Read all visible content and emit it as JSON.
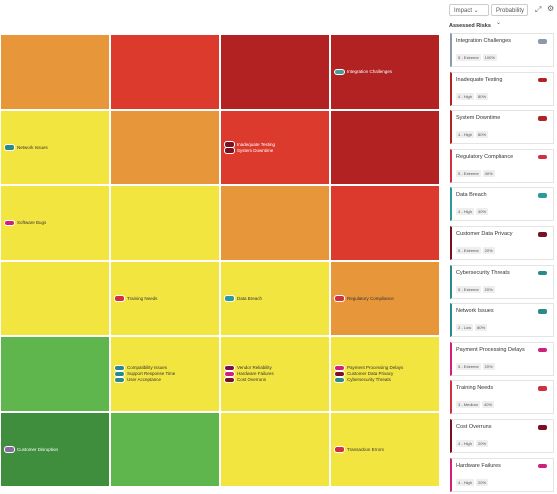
{
  "toolbar": {
    "filters": [
      "Impact",
      "Probability"
    ]
  },
  "heatmap": {
    "rows": [
      {
        "cells": [
          {
            "color": "#e8963a",
            "risks": []
          },
          {
            "color": "#dd3a2e",
            "risks": []
          },
          {
            "color": "#b22222",
            "risks": []
          },
          {
            "color": "#b22222",
            "risks": [
              {
                "name": "Integration Challenges",
                "color": "#4a9a9a"
              }
            ]
          }
        ]
      },
      {
        "cells": [
          {
            "color": "#f3e540",
            "risks": [
              {
                "name": "Network Issues",
                "color": "#2a8a8a"
              }
            ]
          },
          {
            "color": "#e8963a",
            "risks": []
          },
          {
            "color": "#dd3a2e",
            "risks": [
              {
                "name": "Inadequate Testing",
                "color": "#7a1020"
              },
              {
                "name": "System Downtime",
                "color": "#7a1020"
              }
            ]
          },
          {
            "color": "#b22222",
            "risks": []
          }
        ]
      },
      {
        "cells": [
          {
            "color": "#f3e540",
            "risks": [
              {
                "name": "Software Bugs",
                "color": "#d0207a"
              }
            ]
          },
          {
            "color": "#f3e540",
            "risks": []
          },
          {
            "color": "#e8963a",
            "risks": []
          },
          {
            "color": "#dd3a2e",
            "risks": []
          }
        ]
      },
      {
        "cells": [
          {
            "color": "#f3e540",
            "risks": []
          },
          {
            "color": "#f3e540",
            "risks": [
              {
                "name": "Training Needs",
                "color": "#d03040"
              }
            ]
          },
          {
            "color": "#f3e540",
            "risks": [
              {
                "name": "Data Breach",
                "color": "#2a9a9a"
              }
            ]
          },
          {
            "color": "#e8963a",
            "risks": [
              {
                "name": "Regulatory Compliance",
                "color": "#d03040"
              }
            ]
          }
        ]
      },
      {
        "cells": [
          {
            "color": "#5fb64c",
            "risks": []
          },
          {
            "color": "#f3e540",
            "risks": [
              {
                "name": "Compatibility Issues",
                "color": "#2a8a8a"
              },
              {
                "name": "Support Response Time",
                "color": "#2a8a8a"
              },
              {
                "name": "User Acceptance",
                "color": "#2a8a8a"
              }
            ]
          },
          {
            "color": "#f3e540",
            "risks": [
              {
                "name": "Vendor Reliability",
                "color": "#7a1050"
              },
              {
                "name": "Hardware Failures",
                "color": "#d0207a"
              },
              {
                "name": "Cost Overruns",
                "color": "#7a1020"
              }
            ]
          },
          {
            "color": "#f3e540",
            "risks": [
              {
                "name": "Payment Processing Delays",
                "color": "#d0207a"
              },
              {
                "name": "Customer Data Privacy",
                "color": "#7a1020"
              },
              {
                "name": "Cybersecurity Threats",
                "color": "#2a8a8a"
              }
            ]
          }
        ]
      },
      {
        "cells": [
          {
            "color": "#3e8e3e",
            "risks": [
              {
                "name": "Customer Disruption",
                "color": "#8a6aa0"
              }
            ]
          },
          {
            "color": "#5fb64c",
            "risks": []
          },
          {
            "color": "#f3e540",
            "risks": []
          },
          {
            "color": "#f3e540",
            "risks": [
              {
                "name": "Transaction Errors",
                "color": "#d03040"
              }
            ]
          }
        ]
      }
    ]
  },
  "panel": {
    "title": "Assessed Risks",
    "items": [
      {
        "name": "Integration Challenges",
        "impact": "5 - Extreme",
        "probability": "100%",
        "color": "#8a9aaa"
      },
      {
        "name": "Inadequate Testing",
        "impact": "4 - High",
        "probability": "80%",
        "color": "#b22222"
      },
      {
        "name": "System Downtime",
        "impact": "4 - High",
        "probability": "80%",
        "color": "#b22222"
      },
      {
        "name": "Regulatory Compliance",
        "impact": "5 - Extreme",
        "probability": "40%",
        "color": "#d03040"
      },
      {
        "name": "Data Breach",
        "impact": "4 - High",
        "probability": "40%",
        "color": "#2a9a9a"
      },
      {
        "name": "Customer Data Privacy",
        "impact": "5 - Extreme",
        "probability": "20%",
        "color": "#7a1020"
      },
      {
        "name": "Cybersecurity Threats",
        "impact": "5 - Extreme",
        "probability": "20%",
        "color": "#2a8a8a"
      },
      {
        "name": "Network Issues",
        "impact": "2 - Low",
        "probability": "80%",
        "color": "#2a8a8a"
      },
      {
        "name": "Payment Processing Delays",
        "impact": "5 - Extreme",
        "probability": "20%",
        "color": "#d0207a"
      },
      {
        "name": "Training Needs",
        "impact": "3 - Medium",
        "probability": "40%",
        "color": "#d03040"
      },
      {
        "name": "Cost Overruns",
        "impact": "4 - High",
        "probability": "20%",
        "color": "#7a1020"
      },
      {
        "name": "Hardware Failures",
        "impact": "4 - High",
        "probability": "20%",
        "color": "#d0207a"
      }
    ]
  }
}
